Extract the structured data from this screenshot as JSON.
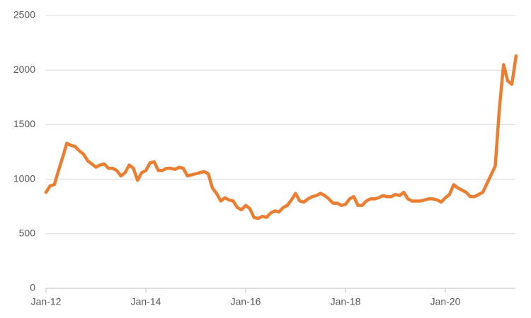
{
  "chart_data": {
    "type": "line",
    "categories": [
      "Jan-12",
      null,
      null,
      null,
      null,
      null,
      null,
      null,
      null,
      null,
      null,
      null,
      null,
      null,
      null,
      null,
      null,
      null,
      null,
      null,
      null,
      null,
      null,
      null,
      "Jan-14",
      null,
      null,
      null,
      null,
      null,
      null,
      null,
      null,
      null,
      null,
      null,
      null,
      null,
      null,
      null,
      null,
      null,
      null,
      null,
      null,
      null,
      null,
      null,
      "Jan-16",
      null,
      null,
      null,
      null,
      null,
      null,
      null,
      null,
      null,
      null,
      null,
      null,
      null,
      null,
      null,
      null,
      null,
      null,
      null,
      null,
      null,
      null,
      null,
      "Jan-18",
      null,
      null,
      null,
      null,
      null,
      null,
      null,
      null,
      null,
      null,
      null,
      null,
      null,
      null,
      null,
      null,
      null,
      null,
      null,
      null,
      null,
      null,
      null,
      "Jan-20",
      null,
      null,
      null,
      null,
      null,
      null,
      null,
      null,
      null,
      null,
      null,
      null,
      null,
      null,
      null,
      null,
      null
    ],
    "series": [
      {
        "color": "#ED7D31",
        "values": [
          880,
          940,
          950,
          1080,
          1200,
          1330,
          1310,
          1300,
          1260,
          1230,
          1170,
          1140,
          1110,
          1130,
          1140,
          1100,
          1100,
          1080,
          1030,
          1060,
          1130,
          1100,
          990,
          1060,
          1080,
          1150,
          1160,
          1080,
          1080,
          1100,
          1100,
          1090,
          1110,
          1100,
          1030,
          1040,
          1050,
          1060,
          1070,
          1050,
          920,
          870,
          800,
          830,
          810,
          800,
          740,
          720,
          760,
          730,
          650,
          640,
          660,
          650,
          690,
          710,
          700,
          740,
          760,
          810,
          870,
          800,
          790,
          820,
          840,
          850,
          870,
          850,
          820,
          780,
          780,
          760,
          770,
          820,
          840,
          760,
          760,
          800,
          820,
          820,
          830,
          850,
          840,
          840,
          860,
          850,
          880,
          820,
          800,
          800,
          800,
          810,
          820,
          820,
          810,
          790,
          830,
          860,
          950,
          920,
          900,
          880,
          840,
          840,
          860,
          880,
          960,
          1040,
          1120,
          1650,
          2050,
          1900,
          1870,
          2130
        ]
      }
    ],
    "ylim": [
      0,
      2500
    ],
    "yticks": [
      0,
      500,
      1000,
      1500,
      2000,
      2500
    ],
    "grid": true
  }
}
